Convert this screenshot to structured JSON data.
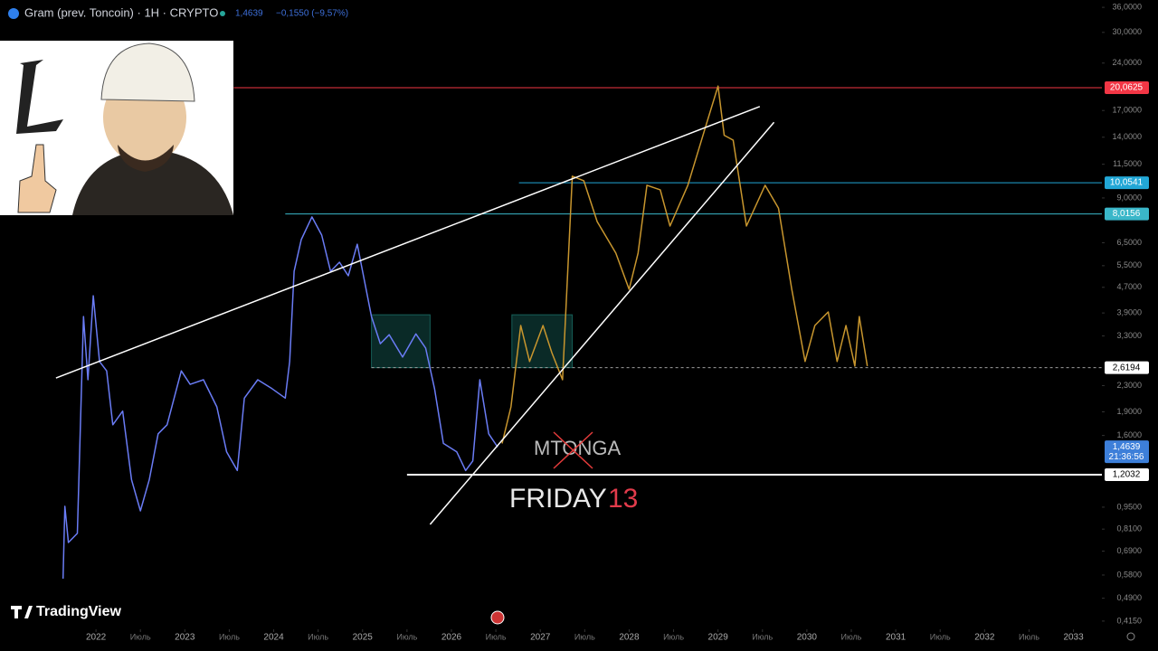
{
  "chart_data": {
    "type": "line",
    "header": {
      "symbol": "Gram (prev. Toncoin) · 1H · CRYPTO",
      "change": "−0,1550 (−9,57%)"
    },
    "yscale": "log",
    "xlim": [
      2020.92,
      2033.32
    ],
    "ylim": [
      0.4066,
      37.97
    ],
    "xticks": [
      2022,
      {
        "value": 2022.5,
        "label": "Июль"
      },
      2023,
      {
        "value": 2023.5,
        "label": "Июль"
      },
      2024,
      {
        "value": 2024.5,
        "label": "Июль"
      },
      2025,
      {
        "value": 2025.5,
        "label": "Июль"
      },
      2026,
      {
        "value": 2026.5,
        "label": "Июль"
      },
      2027,
      {
        "value": 2027.5,
        "label": "Июль"
      },
      2028,
      {
        "value": 2028.5,
        "label": "Июль"
      },
      2029,
      {
        "value": 2029.5,
        "label": "Июль"
      },
      2030,
      {
        "value": 2030.5,
        "label": "Июль"
      },
      2031,
      {
        "value": 2031.5,
        "label": "Июль"
      },
      2032,
      {
        "value": 2032.5,
        "label": "Июль"
      },
      2033
    ],
    "yticks": [
      {
        "value": 36,
        "label": "36,0000"
      },
      {
        "value": 30,
        "label": "30,0000"
      },
      {
        "value": 24,
        "label": "24,0000"
      },
      {
        "value": 17,
        "label": "17,0000"
      },
      {
        "value": 14,
        "label": "14,0000"
      },
      {
        "value": 11.5,
        "label": "11,5000"
      },
      {
        "value": 9,
        "label": "9,0000"
      },
      {
        "value": 6.5,
        "label": "6,5000"
      },
      {
        "value": 5.5,
        "label": "5,5000"
      },
      {
        "value": 4.7,
        "label": "4,7000"
      },
      {
        "value": 3.9,
        "label": "3,9000"
      },
      {
        "value": 3.3,
        "label": "3,3000"
      },
      {
        "value": 2.3,
        "label": "2,3000"
      },
      {
        "value": 1.9,
        "label": "1,9000"
      },
      {
        "value": 1.6,
        "label": "1,6000"
      },
      {
        "value": 0.95,
        "label": "0,9500"
      },
      {
        "value": 0.81,
        "label": "0,8100"
      },
      {
        "value": 0.69,
        "label": "0,6900"
      },
      {
        "value": 0.58,
        "label": "0,5800"
      },
      {
        "value": 0.49,
        "label": "0,4900"
      },
      {
        "value": 0.415,
        "label": "0,4150"
      }
    ],
    "series": [
      {
        "color": "#6a7cf5",
        "x": [
          2021.63,
          2021.65,
          2021.69,
          2021.79,
          2021.86,
          2021.91,
          2021.97,
          2022.04,
          2022.12,
          2022.19,
          2022.3,
          2022.4,
          2022.5,
          2022.6,
          2022.7,
          2022.8,
          2022.96,
          2023.06,
          2023.21,
          2023.36,
          2023.47,
          2023.59,
          2023.67,
          2023.82,
          2023.98,
          2024.13,
          2024.18,
          2024.23,
          2024.31,
          2024.43,
          2024.54,
          2024.64,
          2024.74,
          2024.84,
          2024.94,
          2025.04,
          2025.1,
          2025.2,
          2025.3,
          2025.45,
          2025.6,
          2025.71,
          2025.81,
          2025.91,
          2026.06,
          2026.16,
          2026.24,
          2026.32,
          2026.42,
          2026.52
        ],
        "values": [
          0.565,
          0.956,
          0.735,
          0.785,
          3.8,
          2.4,
          4.42,
          2.74,
          2.56,
          1.73,
          1.91,
          1.16,
          0.925,
          1.16,
          1.62,
          1.73,
          2.56,
          2.32,
          2.4,
          1.97,
          1.42,
          1.24,
          2.1,
          2.4,
          2.25,
          2.1,
          2.74,
          5.28,
          6.65,
          7.84,
          6.87,
          5.28,
          5.64,
          5.11,
          6.43,
          4.63,
          3.8,
          3.12,
          3.33,
          2.83,
          3.35,
          3.02,
          2.25,
          1.51,
          1.42,
          1.24,
          1.33,
          2.4,
          1.62,
          1.47
        ]
      },
      {
        "color": "#c8962e",
        "x": [
          2026.57,
          2026.67,
          2026.78,
          2026.88,
          2027.03,
          2027.13,
          2027.25,
          2027.36,
          2027.49,
          2027.64,
          2027.85,
          2028.0,
          2028.1,
          2028.2,
          2028.35,
          2028.46,
          2028.66,
          2028.86,
          2029.0,
          2029.07,
          2029.17,
          2029.32,
          2029.53,
          2029.68,
          2029.83,
          2029.98,
          2030.09,
          2030.24,
          2030.34,
          2030.44,
          2030.54,
          2030.59,
          2030.68
        ],
        "values": [
          1.51,
          1.97,
          3.56,
          2.74,
          3.56,
          2.92,
          2.4,
          10.54,
          10.2,
          7.58,
          6.03,
          4.63,
          6.03,
          9.87,
          9.55,
          7.34,
          9.87,
          15.1,
          20.3,
          14.2,
          13.7,
          7.34,
          9.87,
          8.36,
          4.63,
          2.74,
          3.56,
          3.93,
          2.74,
          3.56,
          2.65,
          3.8,
          2.65
        ]
      }
    ],
    "levels": [
      {
        "value": 20.0625,
        "label": "20,0625",
        "from": 2023.55,
        "color": "#f23645"
      },
      {
        "value": 10.0541,
        "label": "10,0541",
        "from": 2026.76,
        "color": "#22a7d6"
      },
      {
        "value": 8.0156,
        "label": "8,0156",
        "from": 2024.13,
        "color": "#3ab7c9"
      },
      {
        "value": 2.6194,
        "label": "2,6194",
        "from": 2025.1,
        "color": "#9e9e9e"
      },
      {
        "value": 1.2032,
        "label": "1,2032",
        "from": 2025.5,
        "color": "#ffffff"
      }
    ],
    "trendlines": [
      {
        "x": [
          2021.55,
          2029.47
        ],
        "values": [
          2.43,
          17.5
        ]
      },
      {
        "x": [
          2025.76,
          2029.63
        ],
        "values": [
          0.838,
          15.6
        ]
      }
    ],
    "boxes": [
      {
        "x": [
          2025.1,
          2025.76
        ],
        "values": [
          2.62,
          3.85
        ]
      },
      {
        "x": [
          2026.68,
          2027.36
        ],
        "values": [
          2.62,
          3.85
        ]
      }
    ],
    "last_price": {
      "value": 1.4639,
      "label": "1,4639",
      "countdown": "21:36:56"
    },
    "annotations": {
      "crossed": "MTONGA",
      "friday": "FRIDAY",
      "number": "13"
    },
    "brand": "TradingView"
  }
}
